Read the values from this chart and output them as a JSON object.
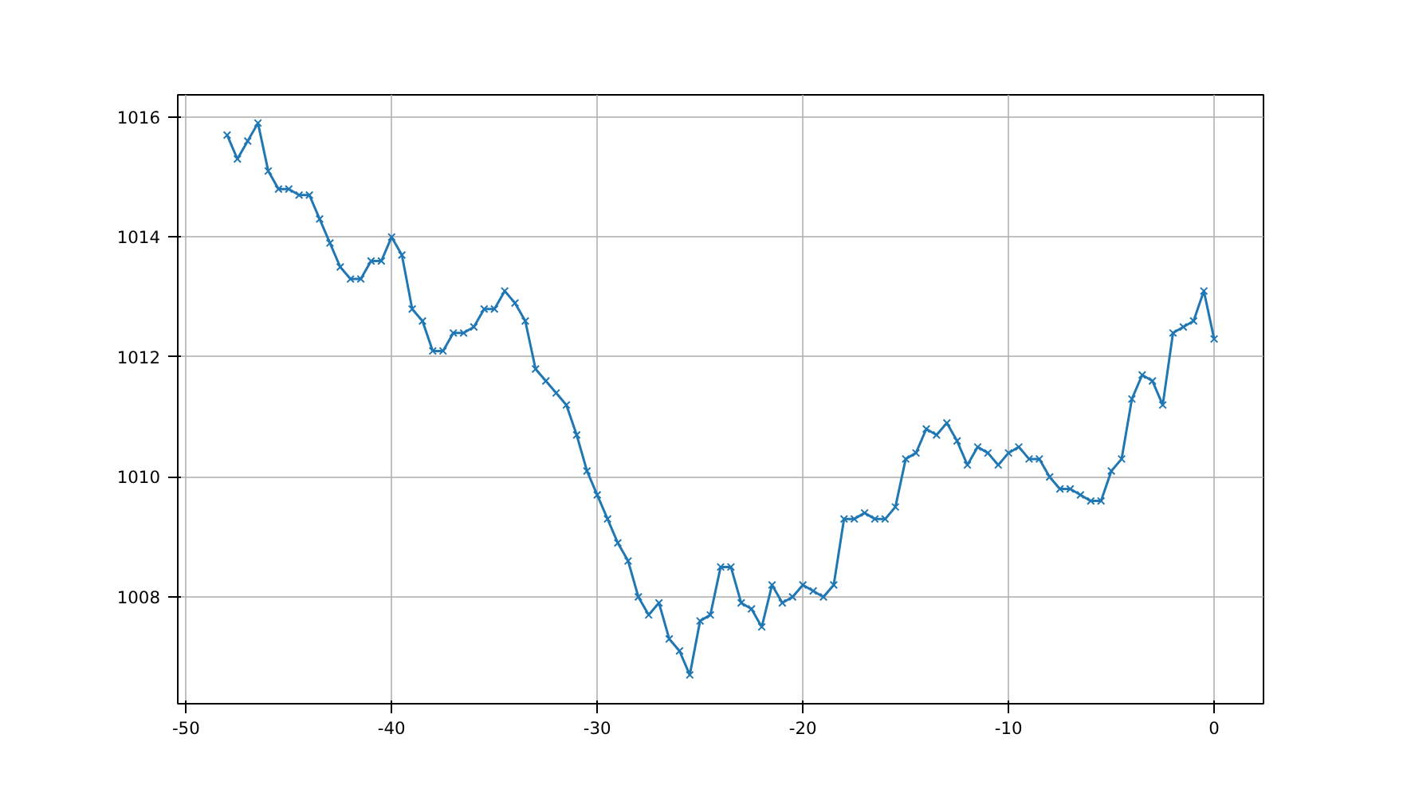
{
  "chart_data": {
    "type": "line",
    "x": [
      -48,
      -47.5,
      -47,
      -46.5,
      -46,
      -45.5,
      -45,
      -44.5,
      -44,
      -43.5,
      -43,
      -42.5,
      -42,
      -41.5,
      -41,
      -40.5,
      -40,
      -39.5,
      -39,
      -38.5,
      -38,
      -37.5,
      -37,
      -36.5,
      -36,
      -35.5,
      -35,
      -34.5,
      -34,
      -33.5,
      -33,
      -32.5,
      -32,
      -31.5,
      -31,
      -30.5,
      -30,
      -29.5,
      -29,
      -28.5,
      -28,
      -27.5,
      -27,
      -26.5,
      -26,
      -25.5,
      -25,
      -24.5,
      -24,
      -23.5,
      -23,
      -22.5,
      -22,
      -21.5,
      -21,
      -20.5,
      -20,
      -19.5,
      -19,
      -18.5,
      -18,
      -17.5,
      -17,
      -16.5,
      -16,
      -15.5,
      -15,
      -14.5,
      -14,
      -13.5,
      -13,
      -12.5,
      -12,
      -11.5,
      -11,
      -10.5,
      -10,
      -9.5,
      -9,
      -8.5,
      -8,
      -7.5,
      -7,
      -6.5,
      -6,
      -5.5,
      -5,
      -4.5,
      -4,
      -3.5,
      -3,
      -2.5,
      -2,
      -1.5,
      -1,
      -0.5,
      0
    ],
    "series": [
      {
        "color": "#1f77b4",
        "values": [
          1015.7,
          1015.3,
          1015.6,
          1015.9,
          1015.1,
          1014.8,
          1014.8,
          1014.7,
          1014.7,
          1014.3,
          1013.9,
          1013.5,
          1013.3,
          1013.3,
          1013.6,
          1013.6,
          1014.0,
          1013.7,
          1012.8,
          1012.6,
          1012.1,
          1012.1,
          1012.4,
          1012.4,
          1012.5,
          1012.8,
          1012.8,
          1013.1,
          1012.9,
          1012.6,
          1011.8,
          1011.6,
          1011.4,
          1011.2,
          1010.7,
          1010.1,
          1009.7,
          1009.3,
          1008.9,
          1008.6,
          1008.0,
          1007.7,
          1007.9,
          1007.3,
          1007.1,
          1006.7,
          1007.6,
          1007.7,
          1008.5,
          1008.5,
          1007.9,
          1007.8,
          1007.5,
          1008.2,
          1007.9,
          1008.0,
          1008.2,
          1008.1,
          1008.0,
          1008.2,
          1009.3,
          1009.3,
          1009.4,
          1009.3,
          1009.3,
          1009.5,
          1010.3,
          1010.4,
          1010.8,
          1010.7,
          1010.9,
          1010.6,
          1010.2,
          1010.5,
          1010.4,
          1010.2,
          1010.4,
          1010.5,
          1010.3,
          1010.3,
          1010.0,
          1009.8,
          1009.8,
          1009.7,
          1009.6,
          1009.6,
          1010.1,
          1010.3,
          1011.3,
          1011.7,
          1011.6,
          1011.2,
          1012.4,
          1012.5,
          1012.6,
          1013.1,
          1012.3
        ]
      }
    ],
    "xlim": [
      -50.4,
      2.4
    ],
    "ylim": [
      1006.22,
      1016.37
    ],
    "xticks": [
      -50,
      -40,
      -30,
      -20,
      -10,
      0
    ],
    "yticks": [
      1008,
      1010,
      1012,
      1014,
      1016
    ],
    "grid": true,
    "marker": "cross",
    "line_style": "solid"
  }
}
